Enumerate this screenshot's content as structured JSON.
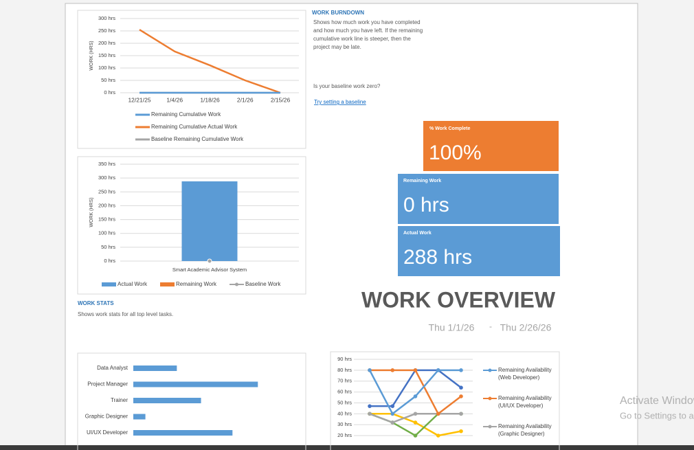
{
  "chart_data": [
    {
      "type": "line",
      "y_label": "WORK (HRS)",
      "categories": [
        "12/21/25",
        "1/4/26",
        "1/18/26",
        "2/1/26",
        "2/15/26"
      ],
      "ylim": [
        0,
        300
      ],
      "yticks": [
        {
          "value": 0,
          "label": "0 hrs"
        },
        {
          "value": 50,
          "label": "50 hrs"
        },
        {
          "value": 100,
          "label": "100 hrs"
        },
        {
          "value": 150,
          "label": "150 hrs"
        },
        {
          "value": 200,
          "label": "200 hrs"
        },
        {
          "value": 250,
          "label": "250 hrs"
        },
        {
          "value": 300,
          "label": "300 hrs"
        }
      ],
      "grid": true,
      "series": [
        {
          "name": "Remaining Cumulative Work",
          "color": "#5b9bd5",
          "values": [
            0,
            0,
            0,
            0,
            0
          ]
        },
        {
          "name": "Remaining Cumulative Actual Work",
          "color": "#ed7d31",
          "values": [
            255,
            167,
            111,
            50,
            0
          ]
        },
        {
          "name": "Baseline Remaining Cumulative Work",
          "color": "#a5a5a5",
          "values": [
            0,
            0,
            0,
            0,
            0
          ]
        }
      ]
    },
    {
      "type": "bar",
      "y_label": "WORK (HRS)",
      "categories": [
        "Smart Academic Advisor System"
      ],
      "ylim": [
        0,
        350
      ],
      "yticks": [
        {
          "value": 0,
          "label": "0 hrs"
        },
        {
          "value": 50,
          "label": "50 hrs"
        },
        {
          "value": 100,
          "label": "100 hrs"
        },
        {
          "value": 150,
          "label": "150 hrs"
        },
        {
          "value": 200,
          "label": "200 hrs"
        },
        {
          "value": 250,
          "label": "250 hrs"
        },
        {
          "value": 300,
          "label": "300 hrs"
        },
        {
          "value": 350,
          "label": "350 hrs"
        }
      ],
      "grid": true,
      "series": [
        {
          "name": "Actual Work",
          "color": "#5b9bd5",
          "values": [
            288
          ]
        },
        {
          "name": "Remaining Work",
          "color": "#ed7d31",
          "values": [
            0
          ]
        },
        {
          "name": "Baseline Work",
          "color": "#a5a5a5",
          "values": [
            0
          ]
        }
      ]
    },
    {
      "type": "hbar",
      "color": "#5b9bd5",
      "categories": [
        "Data Analyst",
        "Project Manager",
        "Trainer",
        "Graphic Designer",
        "UI/UX Developer"
      ],
      "values": [
        36,
        103,
        56,
        10,
        82
      ]
    },
    {
      "type": "line",
      "markers": true,
      "categories": [
        null,
        null,
        null,
        null,
        null
      ],
      "ylim": [
        20,
        90
      ],
      "yticks": [
        {
          "value": 20,
          "label": "20 hrs"
        },
        {
          "value": 30,
          "label": "30 hrs"
        },
        {
          "value": 40,
          "label": "40 hrs"
        },
        {
          "value": 50,
          "label": "50 hrs"
        },
        {
          "value": 60,
          "label": "60 hrs"
        },
        {
          "value": 70,
          "label": "70 hrs"
        },
        {
          "value": 80,
          "label": "80 hrs"
        },
        {
          "value": 90,
          "label": "90 hrs"
        }
      ],
      "grid": true,
      "series": [
        {
          "name": "Remaining Availability (Web Developer)",
          "color": "#5b9bd5",
          "values": [
            80,
            40,
            56,
            80,
            80
          ]
        },
        {
          "name": "Remaining Availability (UI/UX Developer)",
          "color": "#ed7d31",
          "values": [
            80,
            80,
            80,
            40,
            56
          ]
        },
        {
          "name": "Remaining Availability (Graphic Designer)",
          "color": "#a5a5a5",
          "values": [
            40,
            32,
            40,
            40,
            40
          ]
        },
        {
          "color": "#4472c4",
          "values": [
            47,
            47,
            80,
            80,
            64
          ]
        },
        {
          "color": "#70ad47",
          "values": [
            40,
            32,
            20,
            40,
            40
          ]
        },
        {
          "color": "#ffc000",
          "values": [
            40,
            40,
            32,
            20,
            24
          ]
        }
      ]
    }
  ],
  "burndown": {
    "title": "WORK BURNDOWN",
    "description": [
      "Shows how much work you have completed",
      "and how much you have left. If the remaining",
      "cumulative work line is steeper, then the",
      "project may be late."
    ],
    "question": "Is your baseline work zero?",
    "link": "Try setting a baseline"
  },
  "cards": [
    {
      "label": "% Work Complete",
      "value": "100%"
    },
    {
      "label": "Remaining Work",
      "value": "0 hrs"
    },
    {
      "label": "Actual Work",
      "value": "288 hrs"
    }
  ],
  "overview": {
    "title": "WORK OVERVIEW",
    "start": "Thu 1/1/26",
    "separator": "-",
    "end": "Thu 2/26/26"
  },
  "stats": {
    "title": "WORK STATS",
    "description": "Shows work stats for all top level tasks."
  },
  "watermark": {
    "line1": "Activate Windows",
    "line2": "Go to Settings to activate Windows."
  }
}
